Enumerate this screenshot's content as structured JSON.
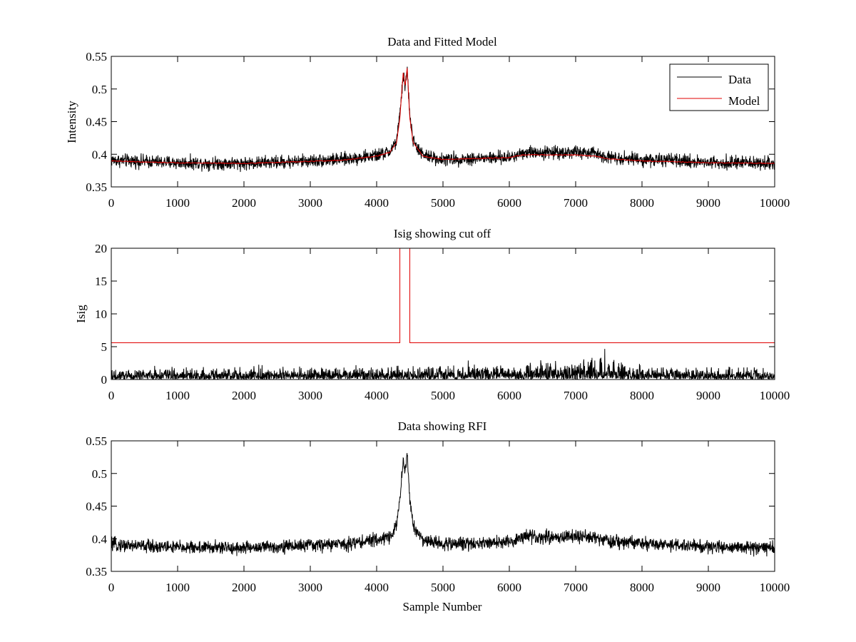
{
  "figure": {
    "background": "#ffffff"
  },
  "chart_data": [
    {
      "id": "top",
      "type": "line",
      "title": "Data and Fitted Model",
      "xlabel": "",
      "ylabel": "Intensity",
      "xlim": [
        0,
        10000
      ],
      "ylim": [
        0.35,
        0.55
      ],
      "xticks": [
        0,
        1000,
        2000,
        3000,
        4000,
        5000,
        6000,
        7000,
        8000,
        9000,
        10000
      ],
      "yticks": [
        0.35,
        0.4,
        0.45,
        0.5,
        0.55
      ],
      "xtick_labels": [
        "0",
        "1000",
        "2000",
        "3000",
        "4000",
        "5000",
        "6000",
        "7000",
        "8000",
        "9000",
        "10000"
      ],
      "ytick_labels": [
        "0.35",
        "0.4",
        "0.45",
        "0.5",
        "0.55"
      ],
      "grid": false,
      "legend": {
        "placement": "top-right",
        "entries": [
          "Data",
          "Model"
        ]
      },
      "series": [
        {
          "name": "Data",
          "color": "#000000",
          "kind": "noisy",
          "noise_amplitude": 0.01,
          "x": [
            0,
            500,
            1000,
            2000,
            3000,
            3500,
            4000,
            4200,
            4300,
            4350,
            4400,
            4430,
            4460,
            4500,
            4550,
            4700,
            5000,
            6000,
            6100,
            6200,
            7000,
            7300,
            7500,
            8000,
            9000,
            10000
          ],
          "y": [
            0.391,
            0.389,
            0.387,
            0.386,
            0.39,
            0.392,
            0.398,
            0.404,
            0.42,
            0.46,
            0.52,
            0.505,
            0.53,
            0.46,
            0.42,
            0.398,
            0.392,
            0.395,
            0.398,
            0.403,
            0.403,
            0.401,
            0.396,
            0.392,
            0.388,
            0.386
          ]
        },
        {
          "name": "Model",
          "color": "#e00000",
          "kind": "smooth",
          "x": [
            0,
            500,
            1000,
            2000,
            3000,
            3500,
            4000,
            4200,
            4300,
            4350,
            4400,
            4430,
            4460,
            4500,
            4550,
            4700,
            5000,
            6000,
            6100,
            6200,
            7000,
            7300,
            7500,
            8000,
            9000,
            10000
          ],
          "y": [
            0.39,
            0.388,
            0.387,
            0.386,
            0.389,
            0.391,
            0.397,
            0.403,
            0.418,
            0.455,
            0.525,
            0.505,
            0.532,
            0.455,
            0.418,
            0.397,
            0.392,
            0.395,
            0.397,
            0.399,
            0.399,
            0.397,
            0.393,
            0.39,
            0.387,
            0.386
          ]
        }
      ]
    },
    {
      "id": "middle",
      "type": "line",
      "title": "Isig showing cut off",
      "xlabel": "",
      "ylabel": "Isig",
      "xlim": [
        0,
        10000
      ],
      "ylim": [
        0,
        20
      ],
      "xticks": [
        0,
        1000,
        2000,
        3000,
        4000,
        5000,
        6000,
        7000,
        8000,
        9000,
        10000
      ],
      "yticks": [
        0,
        5,
        10,
        15,
        20
      ],
      "xtick_labels": [
        "0",
        "1000",
        "2000",
        "3000",
        "4000",
        "5000",
        "6000",
        "7000",
        "8000",
        "9000",
        "10000"
      ],
      "ytick_labels": [
        "0",
        "5",
        "10",
        "15",
        "20"
      ],
      "grid": false,
      "series": [
        {
          "color": "#000000",
          "kind": "spiky",
          "x": [
            0,
            3000,
            4000,
            5000,
            6000,
            6500,
            7000,
            7500,
            8000,
            9000,
            10000
          ],
          "y": [
            0.9,
            1.0,
            1.0,
            1.1,
            1.2,
            1.5,
            1.8,
            1.6,
            1.1,
            0.9,
            0.9
          ]
        },
        {
          "color": "#e00000",
          "kind": "step",
          "x": [
            0,
            4350,
            4350,
            4500,
            4500,
            10000
          ],
          "y": [
            5.6,
            5.6,
            20,
            20,
            5.6,
            5.6
          ]
        }
      ]
    },
    {
      "id": "bottom",
      "type": "line",
      "title": "Data showing RFI",
      "xlabel": "Sample Number",
      "ylabel": "",
      "xlim": [
        0,
        10000
      ],
      "ylim": [
        0.35,
        0.55
      ],
      "xticks": [
        0,
        1000,
        2000,
        3000,
        4000,
        5000,
        6000,
        7000,
        8000,
        9000,
        10000
      ],
      "yticks": [
        0.35,
        0.4,
        0.45,
        0.5,
        0.55
      ],
      "xtick_labels": [
        "0",
        "1000",
        "2000",
        "3000",
        "4000",
        "5000",
        "6000",
        "7000",
        "8000",
        "9000",
        "10000"
      ],
      "ytick_labels": [
        "0.35",
        "0.4",
        "0.45",
        "0.5",
        "0.55"
      ],
      "grid": false,
      "series": [
        {
          "color": "#000000",
          "kind": "noisy",
          "noise_amplitude": 0.01,
          "x": [
            0,
            500,
            1000,
            2000,
            3000,
            3500,
            4000,
            4200,
            4300,
            4350,
            4400,
            4430,
            4460,
            4500,
            4550,
            4700,
            5000,
            6000,
            6100,
            6200,
            7000,
            7300,
            7500,
            8000,
            9000,
            10000
          ],
          "y": [
            0.391,
            0.389,
            0.387,
            0.386,
            0.39,
            0.392,
            0.398,
            0.404,
            0.42,
            0.46,
            0.52,
            0.505,
            0.53,
            0.46,
            0.42,
            0.398,
            0.392,
            0.395,
            0.398,
            0.403,
            0.403,
            0.401,
            0.396,
            0.392,
            0.388,
            0.386
          ]
        }
      ]
    }
  ]
}
